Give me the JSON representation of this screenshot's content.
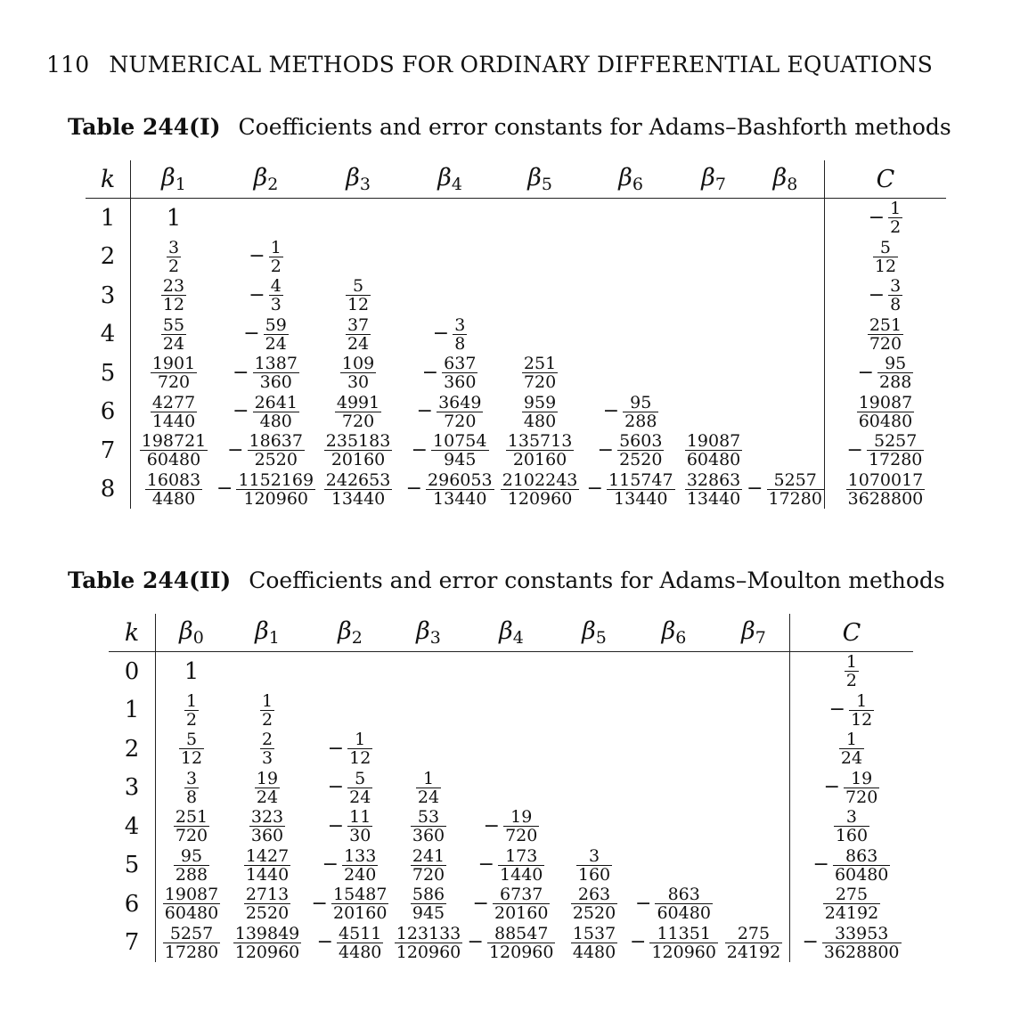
{
  "header": {
    "page_number": "110",
    "running_title": "NUMERICAL METHODS FOR ORDINARY DIFFERENTIAL EQUATIONS"
  },
  "table1": {
    "label": "Table 244(I)",
    "caption": "Coefficients and error constants for Adams–Bashforth methods",
    "k_header": "k",
    "beta_symbol": "β",
    "beta_subscripts": [
      "1",
      "2",
      "3",
      "4",
      "5",
      "6",
      "7",
      "8"
    ],
    "c_header": "C",
    "rows": [
      {
        "k": "1",
        "betas": [
          "1"
        ],
        "C": "-1/2"
      },
      {
        "k": "2",
        "betas": [
          "3/2",
          "-1/2"
        ],
        "C": "5/12"
      },
      {
        "k": "3",
        "betas": [
          "23/12",
          "-4/3",
          "5/12"
        ],
        "C": "-3/8"
      },
      {
        "k": "4",
        "betas": [
          "55/24",
          "-59/24",
          "37/24",
          "-3/8"
        ],
        "C": "251/720"
      },
      {
        "k": "5",
        "betas": [
          "1901/720",
          "-1387/360",
          "109/30",
          "-637/360",
          "251/720"
        ],
        "C": "-95/288"
      },
      {
        "k": "6",
        "betas": [
          "4277/1440",
          "-2641/480",
          "4991/720",
          "-3649/720",
          "959/480",
          "-95/288"
        ],
        "C": "19087/60480"
      },
      {
        "k": "7",
        "betas": [
          "198721/60480",
          "-18637/2520",
          "235183/20160",
          "-10754/945",
          "135713/20160",
          "-5603/2520",
          "19087/60480"
        ],
        "C": "-5257/17280"
      },
      {
        "k": "8",
        "betas": [
          "16083/4480",
          "-1152169/120960",
          "242653/13440",
          "-296053/13440",
          "2102243/120960",
          "-115747/13440",
          "32863/13440",
          "-5257/17280"
        ],
        "C": "1070017/3628800"
      }
    ]
  },
  "table2": {
    "label": "Table 244(II)",
    "caption": "Coefficients and error constants for Adams–Moulton methods",
    "k_header": "k",
    "beta_symbol": "β",
    "beta_subscripts": [
      "0",
      "1",
      "2",
      "3",
      "4",
      "5",
      "6",
      "7"
    ],
    "c_header": "C",
    "rows": [
      {
        "k": "0",
        "betas": [
          "1"
        ],
        "C": "1/2"
      },
      {
        "k": "1",
        "betas": [
          "1/2",
          "1/2"
        ],
        "C": "-1/12"
      },
      {
        "k": "2",
        "betas": [
          "5/12",
          "2/3",
          "-1/12"
        ],
        "C": "1/24"
      },
      {
        "k": "3",
        "betas": [
          "3/8",
          "19/24",
          "-5/24",
          "1/24"
        ],
        "C": "-19/720"
      },
      {
        "k": "4",
        "betas": [
          "251/720",
          "323/360",
          "-11/30",
          "53/360",
          "-19/720"
        ],
        "C": "3/160"
      },
      {
        "k": "5",
        "betas": [
          "95/288",
          "1427/1440",
          "-133/240",
          "241/720",
          "-173/1440",
          "3/160"
        ],
        "C": "-863/60480"
      },
      {
        "k": "6",
        "betas": [
          "19087/60480",
          "2713/2520",
          "-15487/20160",
          "586/945",
          "-6737/20160",
          "263/2520",
          "-863/60480"
        ],
        "C": "275/24192"
      },
      {
        "k": "7",
        "betas": [
          "5257/17280",
          "139849/120960",
          "-4511/4480",
          "123133/120960",
          "-88547/120960",
          "1537/4480",
          "-11351/120960",
          "275/24192"
        ],
        "C": "-33953/3628800"
      }
    ]
  }
}
